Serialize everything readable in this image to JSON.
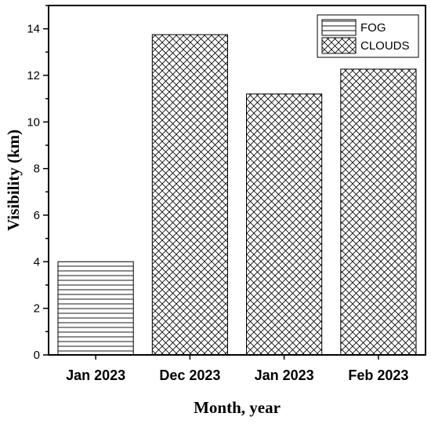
{
  "chart_data": {
    "type": "bar",
    "categories": [
      "Jan 2023",
      "Dec 2023",
      "Jan 2023",
      "Feb 2023"
    ],
    "values": [
      4.0,
      13.75,
      11.2,
      12.27
    ],
    "bar_series": [
      "FOG",
      "CLOUDS",
      "CLOUDS",
      "CLOUDS"
    ],
    "series": [
      {
        "name": "FOG",
        "pattern": "horizontal-lines"
      },
      {
        "name": "CLOUDS",
        "pattern": "crosshatch"
      }
    ],
    "title": "",
    "xlabel": "Month, year",
    "ylabel": "Visibility (km)",
    "ylim": [
      0,
      15
    ],
    "yticks": [
      0,
      2,
      4,
      6,
      8,
      10,
      12,
      14
    ],
    "grid": false,
    "legend_position": "top-right",
    "colors": {
      "bar_fill": "#ffffff",
      "hatch": "#000000",
      "axis": "#000000"
    }
  }
}
